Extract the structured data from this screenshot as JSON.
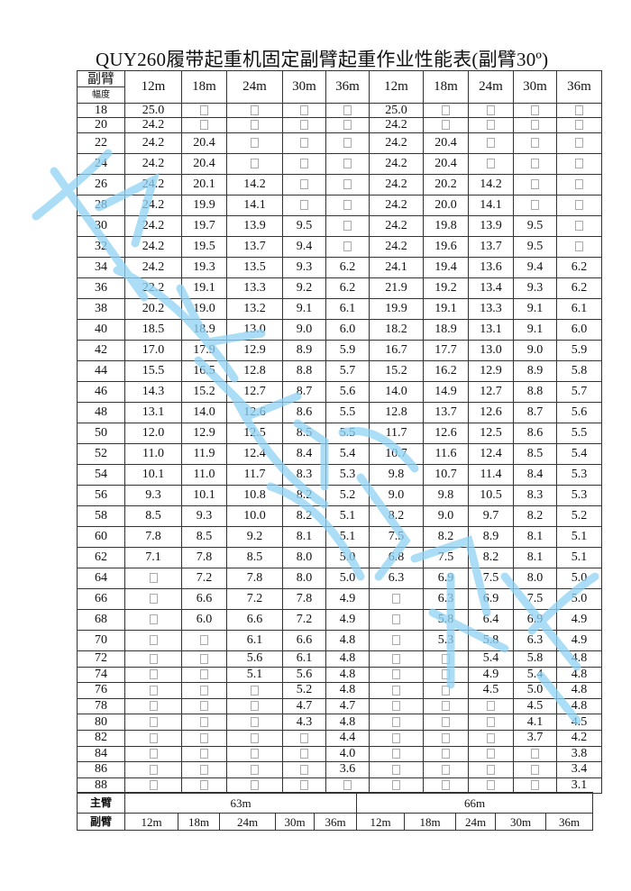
{
  "title": "QUY260履带起重机固定副臂起重作业性能表(副臂30º)",
  "header": {
    "jib_label": "副臂",
    "radius_label": "幅度",
    "columns": [
      "12m",
      "18m",
      "24m",
      "30m",
      "36m",
      "12m",
      "18m",
      "24m",
      "30m",
      "36m"
    ]
  },
  "rows": [
    {
      "radius": "18",
      "values": [
        "25.0",
        "",
        "",
        "",
        "",
        "25.0",
        "",
        "",
        "",
        ""
      ]
    },
    {
      "radius": "20",
      "values": [
        "24.2",
        "",
        "",
        "",
        "",
        "24.2",
        "",
        "",
        "",
        ""
      ]
    },
    {
      "radius": "22",
      "values": [
        "24.2",
        "20.4",
        "",
        "",
        "",
        "24.2",
        "20.4",
        "",
        "",
        ""
      ]
    },
    {
      "radius": "24",
      "values": [
        "24.2",
        "20.4",
        "",
        "",
        "",
        "24.2",
        "20.4",
        "",
        "",
        ""
      ]
    },
    {
      "radius": "26",
      "values": [
        "24.2",
        "20.1",
        "14.2",
        "",
        "",
        "24.2",
        "20.2",
        "14.2",
        "",
        ""
      ]
    },
    {
      "radius": "28",
      "values": [
        "24.2",
        "19.9",
        "14.1",
        "",
        "",
        "24.2",
        "20.0",
        "14.1",
        "",
        ""
      ]
    },
    {
      "radius": "30",
      "values": [
        "24.2",
        "19.7",
        "13.9",
        "9.5",
        "",
        "24.2",
        "19.8",
        "13.9",
        "9.5",
        ""
      ]
    },
    {
      "radius": "32",
      "values": [
        "24.2",
        "19.5",
        "13.7",
        "9.4",
        "",
        "24.2",
        "19.6",
        "13.7",
        "9.5",
        ""
      ]
    },
    {
      "radius": "34",
      "values": [
        "24.2",
        "19.3",
        "13.5",
        "9.3",
        "6.2",
        "24.1",
        "19.4",
        "13.6",
        "9.4",
        "6.2"
      ]
    },
    {
      "radius": "36",
      "values": [
        "22.2",
        "19.1",
        "13.3",
        "9.2",
        "6.2",
        "21.9",
        "19.2",
        "13.4",
        "9.3",
        "6.2"
      ]
    },
    {
      "radius": "38",
      "values": [
        "20.2",
        "19.0",
        "13.2",
        "9.1",
        "6.1",
        "19.9",
        "19.1",
        "13.3",
        "9.1",
        "6.1"
      ]
    },
    {
      "radius": "40",
      "values": [
        "18.5",
        "18.9",
        "13.0",
        "9.0",
        "6.0",
        "18.2",
        "18.9",
        "13.1",
        "9.1",
        "6.0"
      ]
    },
    {
      "radius": "42",
      "values": [
        "17.0",
        "17.9",
        "12.9",
        "8.9",
        "5.9",
        "16.7",
        "17.7",
        "13.0",
        "9.0",
        "5.9"
      ]
    },
    {
      "radius": "44",
      "values": [
        "15.5",
        "16.5",
        "12.8",
        "8.8",
        "5.7",
        "15.2",
        "16.2",
        "12.9",
        "8.9",
        "5.8"
      ]
    },
    {
      "radius": "46",
      "values": [
        "14.3",
        "15.2",
        "12.7",
        "8.7",
        "5.6",
        "14.0",
        "14.9",
        "12.7",
        "8.8",
        "5.7"
      ]
    },
    {
      "radius": "48",
      "values": [
        "13.1",
        "14.0",
        "12.6",
        "8.6",
        "5.5",
        "12.8",
        "13.7",
        "12.6",
        "8.7",
        "5.6"
      ]
    },
    {
      "radius": "50",
      "values": [
        "12.0",
        "12.9",
        "12.5",
        "8.5",
        "5.5",
        "11.7",
        "12.6",
        "12.5",
        "8.6",
        "5.5"
      ]
    },
    {
      "radius": "52",
      "values": [
        "11.0",
        "11.9",
        "12.4",
        "8.4",
        "5.4",
        "10.7",
        "11.6",
        "12.4",
        "8.5",
        "5.4"
      ]
    },
    {
      "radius": "54",
      "values": [
        "10.1",
        "11.0",
        "11.7",
        "8.3",
        "5.3",
        "9.8",
        "10.7",
        "11.4",
        "8.4",
        "5.3"
      ]
    },
    {
      "radius": "56",
      "values": [
        "9.3",
        "10.1",
        "10.8",
        "8.2",
        "5.2",
        "9.0",
        "9.8",
        "10.5",
        "8.3",
        "5.3"
      ]
    },
    {
      "radius": "58",
      "values": [
        "8.5",
        "9.3",
        "10.0",
        "8.2",
        "5.1",
        "8.2",
        "9.0",
        "9.7",
        "8.2",
        "5.2"
      ]
    },
    {
      "radius": "60",
      "values": [
        "7.8",
        "8.5",
        "9.2",
        "8.1",
        "5.1",
        "7.5",
        "8.2",
        "8.9",
        "8.1",
        "5.1"
      ]
    },
    {
      "radius": "62",
      "values": [
        "7.1",
        "7.8",
        "8.5",
        "8.0",
        "5.0",
        "6.8",
        "7.5",
        "8.2",
        "8.1",
        "5.1"
      ]
    },
    {
      "radius": "64",
      "values": [
        "",
        "7.2",
        "7.8",
        "8.0",
        "5.0",
        "6.3",
        "6.9",
        "7.5",
        "8.0",
        "5.0"
      ]
    },
    {
      "radius": "66",
      "values": [
        "",
        "6.6",
        "7.2",
        "7.8",
        "4.9",
        "",
        "6.3",
        "6.9",
        "7.5",
        "5.0"
      ]
    },
    {
      "radius": "68",
      "values": [
        "",
        "6.0",
        "6.6",
        "7.2",
        "4.9",
        "",
        "5.8",
        "6.4",
        "6.9",
        "4.9"
      ]
    },
    {
      "radius": "70",
      "values": [
        "",
        "",
        "6.1",
        "6.6",
        "4.8",
        "",
        "5.3",
        "5.8",
        "6.3",
        "4.9"
      ]
    },
    {
      "radius": "72",
      "values": [
        "",
        "",
        "5.6",
        "6.1",
        "4.8",
        "",
        "",
        "5.4",
        "5.8",
        "4.8"
      ]
    },
    {
      "radius": "74",
      "values": [
        "",
        "",
        "5.1",
        "5.6",
        "4.8",
        "",
        "",
        "4.9",
        "5.4",
        "4.8"
      ]
    },
    {
      "radius": "76",
      "values": [
        "",
        "",
        "",
        "5.2",
        "4.8",
        "",
        "",
        "4.5",
        "5.0",
        "4.8"
      ]
    },
    {
      "radius": "78",
      "values": [
        "",
        "",
        "",
        "4.7",
        "4.7",
        "",
        "",
        "",
        "4.5",
        "4.8"
      ]
    },
    {
      "radius": "80",
      "values": [
        "",
        "",
        "",
        "4.3",
        "4.8",
        "",
        "",
        "",
        "4.1",
        "4.5"
      ]
    },
    {
      "radius": "82",
      "values": [
        "",
        "",
        "",
        "",
        "4.4",
        "",
        "",
        "",
        "3.7",
        "4.2"
      ]
    },
    {
      "radius": "84",
      "values": [
        "",
        "",
        "",
        "",
        "4.0",
        "",
        "",
        "",
        "",
        "3.8"
      ]
    },
    {
      "radius": "86",
      "values": [
        "",
        "",
        "",
        "",
        "3.6",
        "",
        "",
        "",
        "",
        "3.4"
      ]
    },
    {
      "radius": "88",
      "values": [
        "",
        "",
        "",
        "",
        "",
        "",
        "",
        "",
        "",
        "3.1"
      ]
    }
  ],
  "footer": {
    "main_boom_label": "主臂",
    "main_booms": [
      "63m",
      "66m"
    ],
    "jib_label": "副臂",
    "jibs": [
      "12m",
      "18m",
      "24m",
      "30m",
      "36m",
      "12m",
      "18m",
      "24m",
      "30m",
      "36m"
    ]
  },
  "colors": {
    "watermark": "#8fd3f4",
    "border": "#333333",
    "empty_box": "#aaaaaa"
  }
}
